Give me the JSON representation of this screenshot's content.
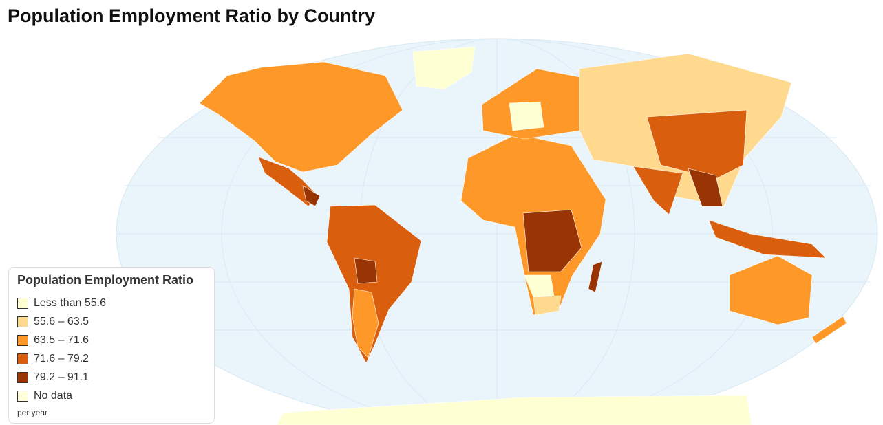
{
  "title": "Population Employment Ratio by Country",
  "legend": {
    "title": "Population Employment Ratio",
    "items": [
      {
        "label": "Less than 55.6",
        "color": "#ffffd4"
      },
      {
        "label": "55.6 – 63.5",
        "color": "#fed98e"
      },
      {
        "label": "63.5 – 71.6",
        "color": "#fe9929"
      },
      {
        "label": "71.6 – 79.2",
        "color": "#d95f0e"
      },
      {
        "label": "79.2 – 91.1",
        "color": "#993404"
      },
      {
        "label": "No data",
        "color": "#ffffe0"
      }
    ],
    "note": "per year"
  }
}
